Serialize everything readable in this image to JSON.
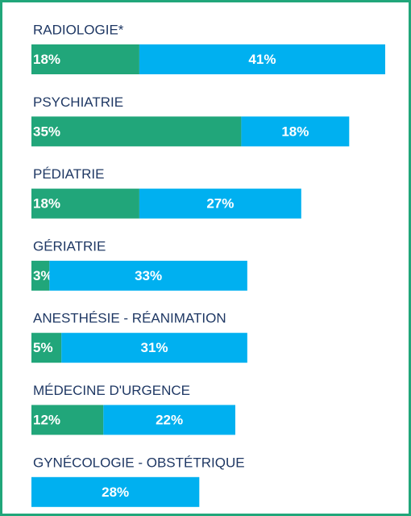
{
  "chart_data": {
    "type": "stacked-bar-horizontal",
    "categories": [
      "RADIOLOGIE*",
      "PSYCHIATRIE",
      "PÉDIATRIE",
      "GÉRIATRIE",
      "ANESTHÉSIE - RÉANIMATION",
      "MÉDECINE D'URGENCE",
      "GYNÉCOLOGIE - OBSTÉTRIQUE"
    ],
    "series": [
      {
        "color": "#21a67a",
        "values": [
          18,
          35,
          18,
          3,
          5,
          12,
          null
        ],
        "value_labels": [
          "18%",
          "35%",
          "18%",
          "3%",
          "5%",
          "12%",
          null
        ]
      },
      {
        "color": "#00b0f0",
        "values": [
          41,
          18,
          27,
          33,
          31,
          22,
          28
        ],
        "value_labels": [
          "41%",
          "18%",
          "27%",
          "33%",
          "31%",
          "22%",
          "28%"
        ]
      }
    ]
  }
}
